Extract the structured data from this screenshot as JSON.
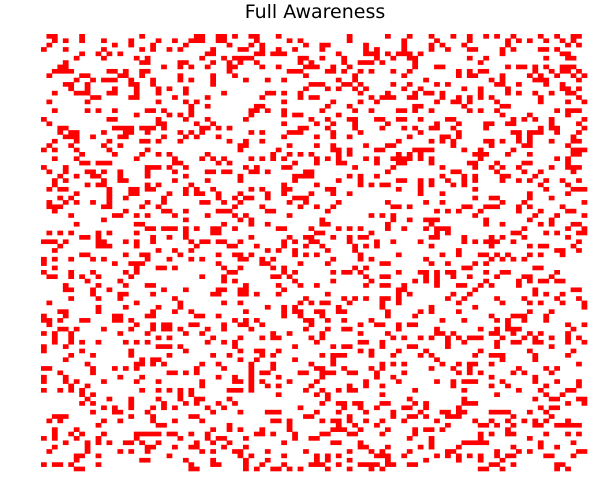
{
  "chart_data": {
    "type": "heatmap",
    "title": "Full Awareness",
    "xlabel": "",
    "ylabel": "",
    "colors": {
      "active": "#ff0000",
      "inactive": "#ffffff"
    },
    "axes": "off",
    "grid": false,
    "size": [
      100,
      100
    ],
    "active_density": 0.2,
    "seed": 20240611
  }
}
